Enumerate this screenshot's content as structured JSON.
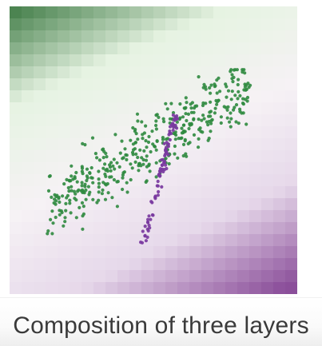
{
  "caption": "Composition of three layers",
  "colors": {
    "green_strong": "#2e6f35",
    "green_light": "#e6f3e2",
    "neutral": "#f6f2f5",
    "purple_light": "#e6d8ea",
    "purple_strong": "#8b4f9a",
    "green_points": "#2f8a3f",
    "purple_points": "#7a3aa0"
  },
  "chart_data": {
    "type": "scatter",
    "title": "",
    "xlabel": "",
    "ylabel": "",
    "xlim": [
      0,
      10
    ],
    "ylim": [
      0,
      10
    ],
    "grid": false,
    "layers": [
      "background-heatmap",
      "green-scatter",
      "purple-scatter"
    ],
    "heatmap": {
      "cells": 24,
      "colormap": "PRGn",
      "description_of_gradient": "green top-left to purple bottom-right"
    },
    "series": [
      {
        "color": "#2f8a3f",
        "count": 420,
        "x_range": [
          1.3,
          8.4
        ],
        "y_range": [
          2.1,
          7.8
        ]
      },
      {
        "color": "#7a3aa0",
        "count": 90,
        "x_range": [
          4.6,
          5.8
        ],
        "y_range": [
          1.6,
          6.3
        ]
      }
    ]
  }
}
